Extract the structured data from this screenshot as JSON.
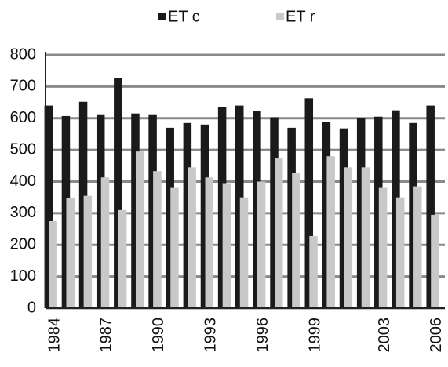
{
  "chart_data": {
    "type": "bar",
    "categories": [
      "1984",
      null,
      null,
      "1987",
      null,
      null,
      "1990",
      null,
      null,
      "1993",
      null,
      null,
      "1996",
      null,
      null,
      "1999",
      null,
      null,
      null,
      "2003",
      null,
      null,
      "2006"
    ],
    "series": [
      {
        "name": "ET c",
        "color": "#1a1a1a",
        "values": [
          640,
          607,
          652,
          610,
          727,
          615,
          610,
          570,
          585,
          580,
          635,
          640,
          622,
          603,
          570,
          663,
          588,
          568,
          600,
          605,
          625,
          585,
          640
        ]
      },
      {
        "name": "ET r",
        "color": "#c8c8c8",
        "values": [
          275,
          348,
          355,
          413,
          310,
          495,
          433,
          380,
          445,
          413,
          395,
          350,
          400,
          473,
          428,
          228,
          480,
          445,
          445,
          380,
          350,
          385,
          295
        ]
      }
    ],
    "ylim": [
      0,
      800
    ],
    "yticks": [
      0,
      100,
      200,
      300,
      400,
      500,
      600,
      700,
      800
    ],
    "grid": true,
    "legend": "top"
  }
}
